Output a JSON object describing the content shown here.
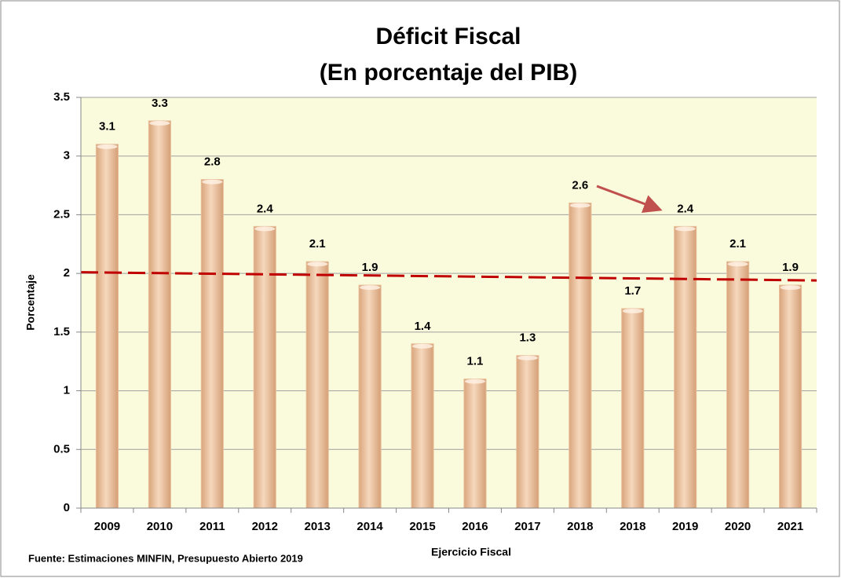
{
  "chart_data": {
    "type": "bar",
    "title": [
      "Déficit Fiscal",
      "(En porcentaje del PIB)"
    ],
    "x_label": "Ejercicio Fiscal",
    "y_label": "Porcentaje",
    "source": "Fuente: Estimaciones MINFIN, Presupuesto Abierto 2019",
    "categories": [
      "2009",
      "2010",
      "2011",
      "2012",
      "2013",
      "2014",
      "2015",
      "2016",
      "2017",
      "2018",
      "2018",
      "2019",
      "2020",
      "2021"
    ],
    "values": [
      3.1,
      3.3,
      2.8,
      2.4,
      2.1,
      1.9,
      1.4,
      1.1,
      1.3,
      2.6,
      1.7,
      2.4,
      2.1,
      1.9
    ],
    "color": "#e8bf9a",
    "ylim": [
      0,
      3.5
    ],
    "yticks": [
      0,
      0.5,
      1,
      1.5,
      2,
      2.5,
      3,
      3.5
    ],
    "grid": true,
    "trendline": {
      "start": 2.01,
      "end": 1.94,
      "color": "#c00000"
    }
  }
}
